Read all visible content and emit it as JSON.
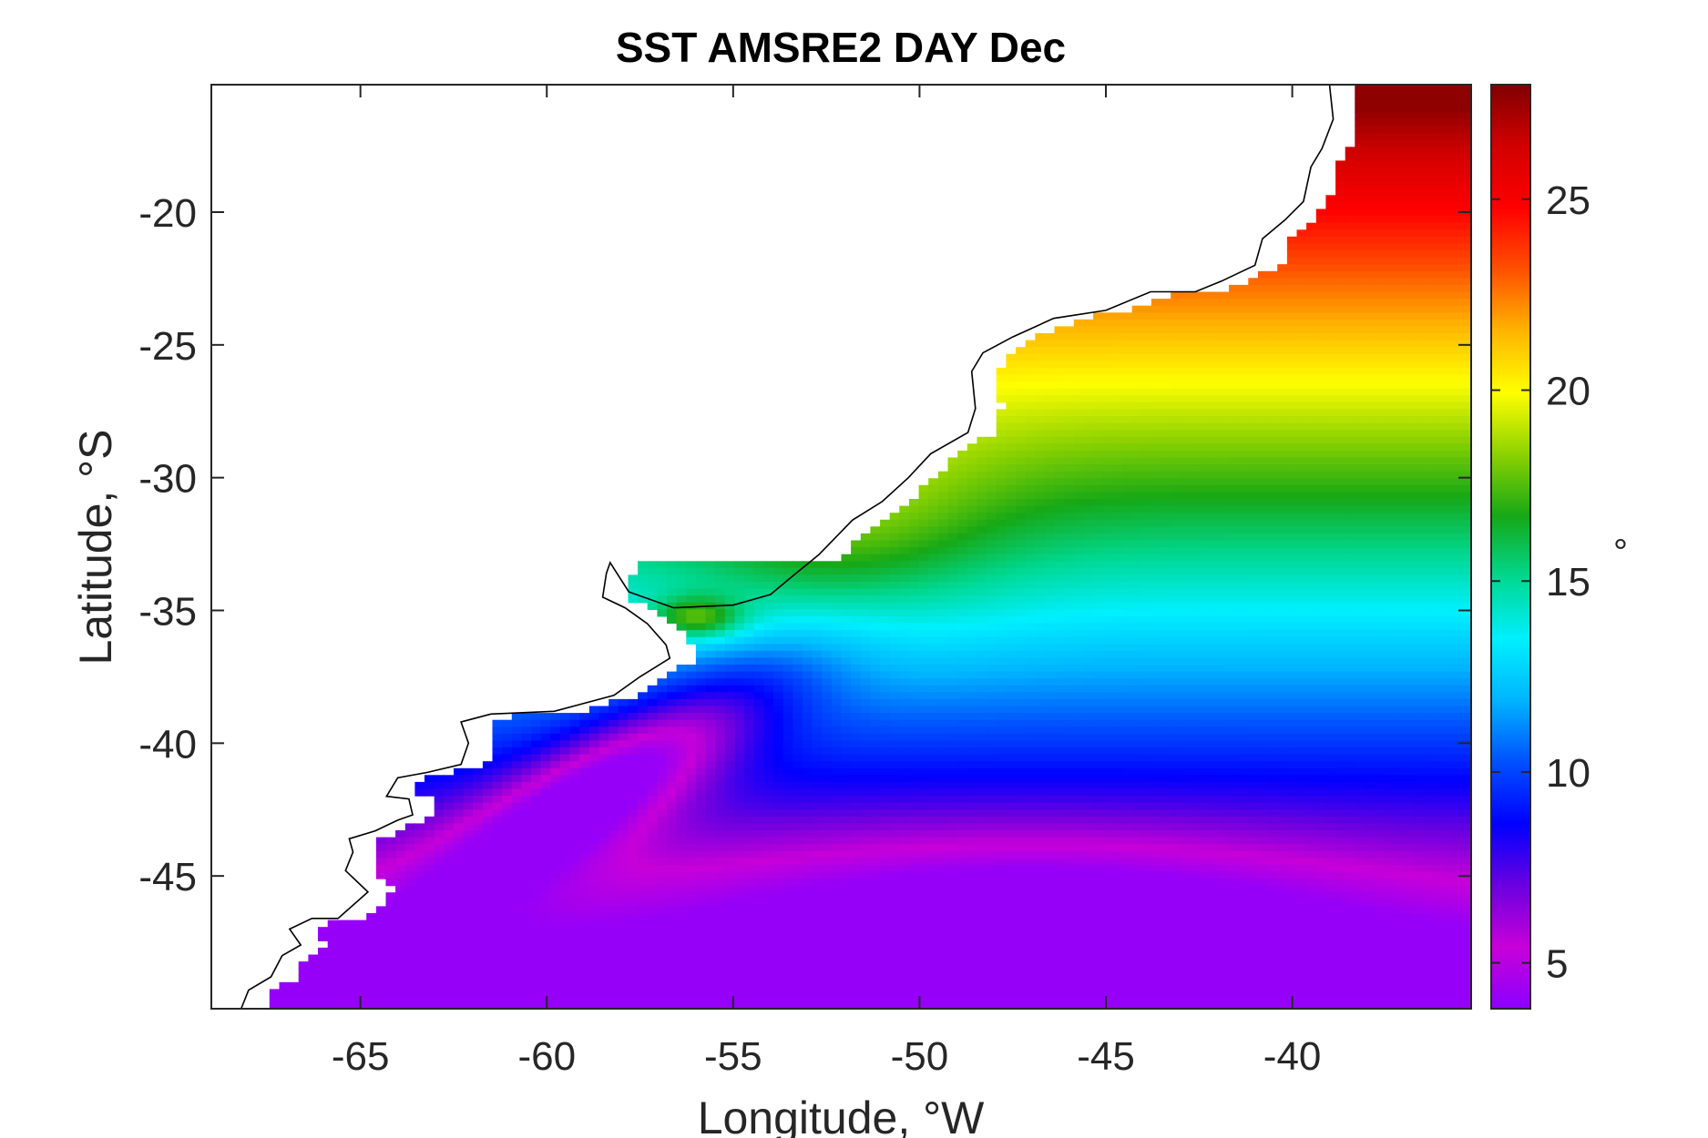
{
  "chart_data": {
    "type": "heatmap",
    "title": "SST AMSRE2 DAY Dec",
    "xlabel": "Longitude, °W",
    "ylabel": "Latitude, °S",
    "colorbar_label": "°",
    "xlim": [
      -69,
      -35.2
    ],
    "ylim": [
      -50,
      -15.2
    ],
    "xticks": [
      -65,
      -60,
      -55,
      -50,
      -45,
      -40
    ],
    "yticks": [
      -20,
      -25,
      -30,
      -35,
      -40,
      -45
    ],
    "colorbar_range": [
      3.8,
      28
    ],
    "colorbar_ticks": [
      5,
      10,
      15,
      20,
      25
    ],
    "colormap": [
      "#8a00ff",
      "#c800d8",
      "#6a00e0",
      "#0000ff",
      "#0050ff",
      "#00b4ff",
      "#00f0ff",
      "#00d890",
      "#16a816",
      "#8cd200",
      "#ffff00",
      "#ffb400",
      "#ff5000",
      "#ff0000",
      "#d20000",
      "#800000"
    ],
    "land_color": "#ffffff",
    "coastline_color": "#000000",
    "field": "sea surface temperature, warm (~27°) in the northeast decreasing to cold (~6°) in the south, with a cold tongue extending northeast from -60°W,-43°S and the warm front near -53°W,-35°S",
    "x_points": [
      -69,
      -65,
      -60,
      -55,
      -50,
      -45,
      -40,
      -35.2
    ],
    "y_points": [
      -15.2,
      -20,
      -25,
      -30,
      -35,
      -40,
      -45,
      -50
    ]
  }
}
